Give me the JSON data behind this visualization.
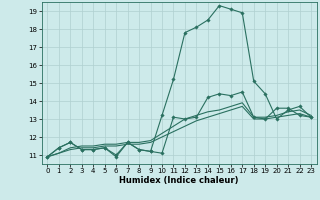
{
  "xlabel": "Humidex (Indice chaleur)",
  "background_color": "#cdeaea",
  "line_color": "#2a7060",
  "grid_color": "#b0d0d0",
  "xlim": [
    -0.5,
    23.5
  ],
  "ylim": [
    10.5,
    19.5
  ],
  "yticks": [
    11,
    12,
    13,
    14,
    15,
    16,
    17,
    18,
    19
  ],
  "xticks": [
    0,
    1,
    2,
    3,
    4,
    5,
    6,
    7,
    8,
    9,
    10,
    11,
    12,
    13,
    14,
    15,
    16,
    17,
    18,
    19,
    20,
    21,
    22,
    23
  ],
  "series": [
    {
      "y": [
        10.9,
        11.4,
        11.7,
        11.3,
        11.3,
        11.4,
        10.9,
        11.7,
        11.3,
        11.2,
        13.2,
        15.2,
        17.8,
        18.1,
        18.5,
        19.3,
        19.1,
        18.9,
        15.1,
        14.4,
        13.0,
        13.5,
        13.7,
        13.1
      ],
      "marker": true
    },
    {
      "y": [
        10.9,
        11.4,
        11.7,
        11.3,
        11.3,
        11.4,
        11.0,
        11.7,
        11.3,
        11.2,
        11.1,
        13.1,
        13.0,
        13.1,
        14.2,
        14.4,
        14.3,
        14.5,
        13.1,
        13.0,
        13.6,
        13.6,
        13.2,
        13.1
      ],
      "marker": true
    },
    {
      "y": [
        10.9,
        11.1,
        11.3,
        11.4,
        11.4,
        11.5,
        11.5,
        11.6,
        11.6,
        11.7,
        12.0,
        12.3,
        12.6,
        12.9,
        13.1,
        13.3,
        13.5,
        13.7,
        13.0,
        13.0,
        13.1,
        13.2,
        13.3,
        13.1
      ],
      "marker": false
    },
    {
      "y": [
        10.9,
        11.1,
        11.4,
        11.5,
        11.5,
        11.6,
        11.6,
        11.7,
        11.7,
        11.8,
        12.2,
        12.6,
        13.0,
        13.2,
        13.4,
        13.5,
        13.7,
        13.9,
        13.1,
        13.1,
        13.2,
        13.4,
        13.5,
        13.2
      ],
      "marker": false
    }
  ]
}
